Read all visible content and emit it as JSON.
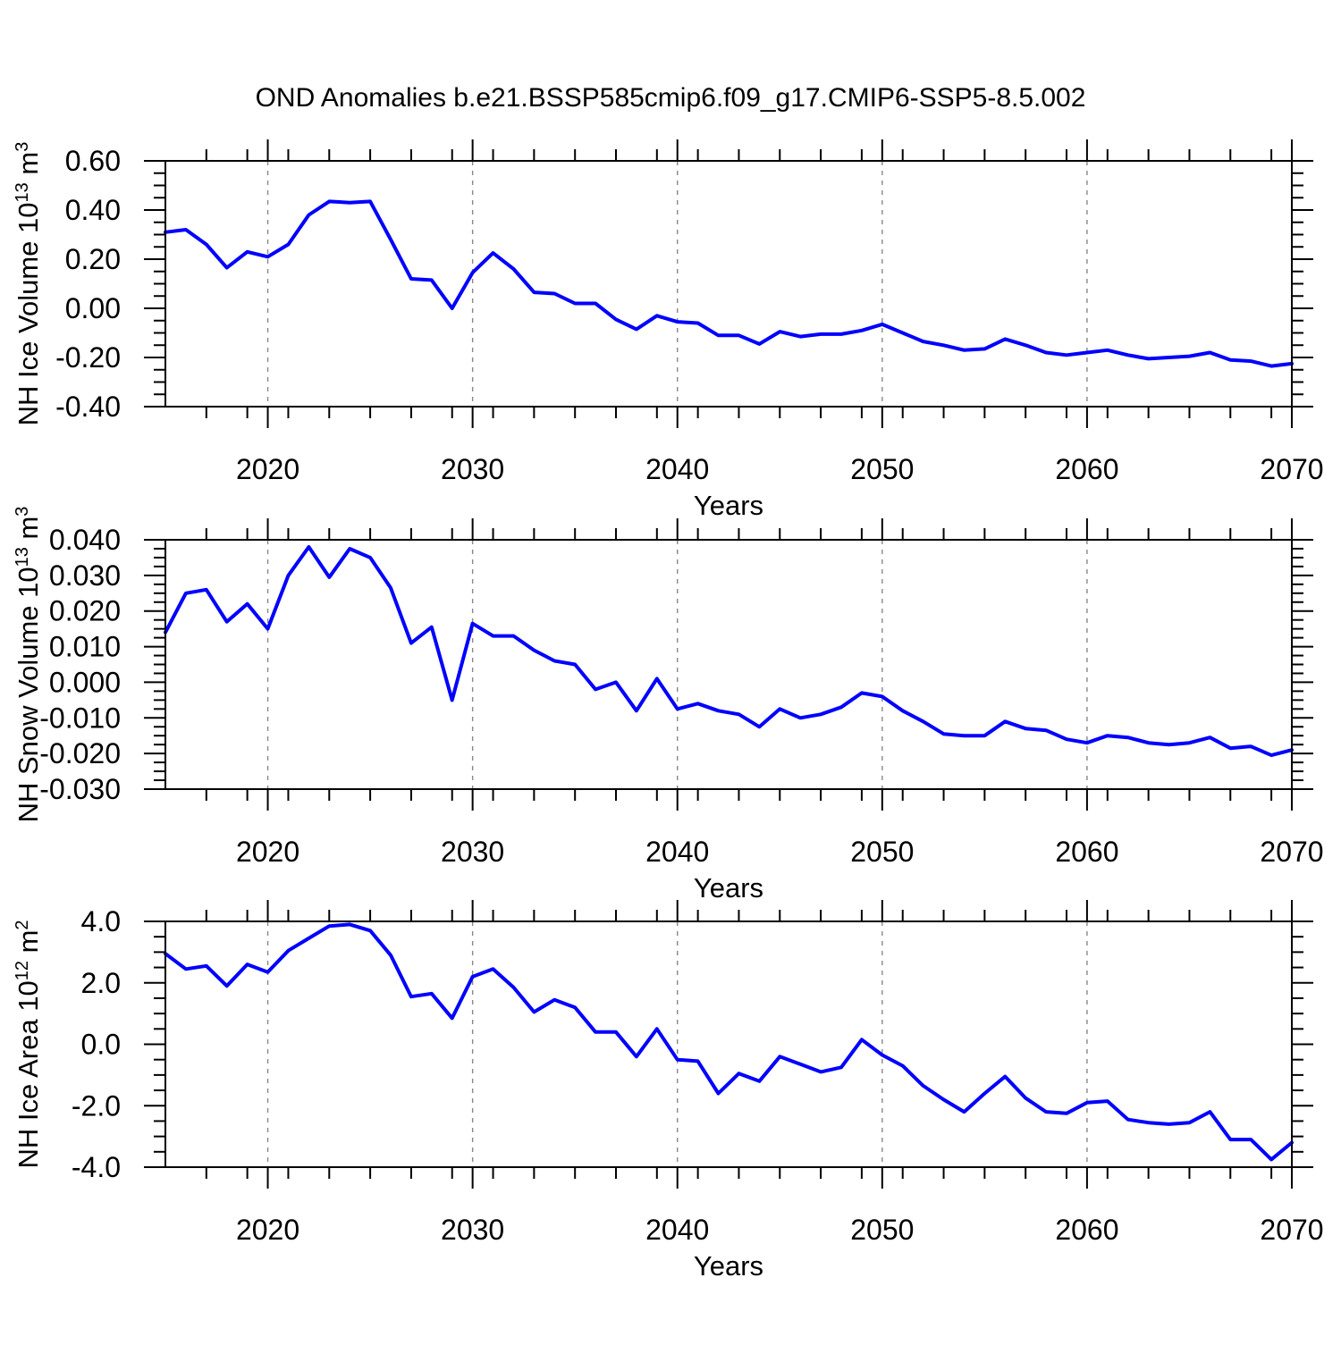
{
  "title": "OND Anomalies b.e21.BSSP585cmip6.f09_g17.CMIP6-SSP5-8.5.002",
  "colors": {
    "line": "#0000ff",
    "grid": "#888888",
    "frame": "#000000",
    "background": "#ffffff"
  },
  "chart_data": [
    {
      "type": "line",
      "name": "ice-volume",
      "ylabel": "NH Ice Volume 10^{13} m^{3}",
      "xlabel": "Years",
      "x": {
        "start": 2015,
        "end": 2070,
        "step": 1
      },
      "ylim": [
        -0.4,
        0.6
      ],
      "ymajor_step": 0.2,
      "yminor_step": 0.05,
      "yticks": [
        {
          "v": 0.6,
          "label": "0.60"
        },
        {
          "v": 0.4,
          "label": "0.40"
        },
        {
          "v": 0.2,
          "label": "0.20"
        },
        {
          "v": 0.0,
          "label": "0.00"
        },
        {
          "v": -0.2,
          "label": "-0.20"
        },
        {
          "v": -0.4,
          "label": "-0.40"
        }
      ],
      "xticks": [
        {
          "v": 2020,
          "label": "2020"
        },
        {
          "v": 2030,
          "label": "2030"
        },
        {
          "v": 2040,
          "label": "2040"
        },
        {
          "v": 2050,
          "label": "2050"
        },
        {
          "v": 2060,
          "label": "2060"
        },
        {
          "v": 2070,
          "label": "2070"
        }
      ],
      "xminor_step": 2,
      "gridlines": [
        2020,
        2030,
        2040,
        2050,
        2060
      ],
      "grid_style": "dashed-vertical",
      "legend": "none",
      "values": [
        0.31,
        0.32,
        0.26,
        0.165,
        0.23,
        0.21,
        0.26,
        0.38,
        0.435,
        0.43,
        0.435,
        0.28,
        0.12,
        0.115,
        0.0,
        0.145,
        0.225,
        0.16,
        0.065,
        0.06,
        0.02,
        0.02,
        -0.045,
        -0.085,
        -0.03,
        -0.055,
        -0.06,
        -0.11,
        -0.11,
        -0.145,
        -0.095,
        -0.115,
        -0.105,
        -0.105,
        -0.09,
        -0.065,
        -0.1,
        -0.135,
        -0.15,
        -0.17,
        -0.165,
        -0.125,
        -0.15,
        -0.18,
        -0.19,
        -0.18,
        -0.17,
        -0.19,
        -0.205,
        -0.2,
        -0.195,
        -0.18,
        -0.21,
        -0.215,
        -0.235,
        -0.225
      ]
    },
    {
      "type": "line",
      "name": "snow-volume",
      "ylabel": "NH Snow Volume 10^{13} m^{3}",
      "xlabel": "Years",
      "x": {
        "start": 2015,
        "end": 2070,
        "step": 1
      },
      "ylim": [
        -0.03,
        0.04
      ],
      "ymajor_step": 0.01,
      "yminor_step": 0.0025,
      "yticks": [
        {
          "v": 0.04,
          "label": "0.040"
        },
        {
          "v": 0.03,
          "label": "0.030"
        },
        {
          "v": 0.02,
          "label": "0.020"
        },
        {
          "v": 0.01,
          "label": "0.010"
        },
        {
          "v": 0.0,
          "label": "0.000"
        },
        {
          "v": -0.01,
          "label": "-0.010"
        },
        {
          "v": -0.02,
          "label": "-0.020"
        },
        {
          "v": -0.03,
          "label": "-0.030"
        }
      ],
      "xticks": [
        {
          "v": 2020,
          "label": "2020"
        },
        {
          "v": 2030,
          "label": "2030"
        },
        {
          "v": 2040,
          "label": "2040"
        },
        {
          "v": 2050,
          "label": "2050"
        },
        {
          "v": 2060,
          "label": "2060"
        },
        {
          "v": 2070,
          "label": "2070"
        }
      ],
      "xminor_step": 2,
      "gridlines": [
        2020,
        2030,
        2040,
        2050,
        2060
      ],
      "grid_style": "dashed-vertical",
      "legend": "none",
      "values": [
        0.014,
        0.025,
        0.026,
        0.017,
        0.022,
        0.015,
        0.03,
        0.038,
        0.0295,
        0.0375,
        0.035,
        0.0265,
        0.011,
        0.0155,
        -0.005,
        0.0165,
        0.013,
        0.013,
        0.009,
        0.006,
        0.005,
        -0.002,
        0.0,
        -0.008,
        0.001,
        -0.0075,
        -0.006,
        -0.008,
        -0.009,
        -0.0125,
        -0.0075,
        -0.01,
        -0.009,
        -0.007,
        -0.003,
        -0.004,
        -0.008,
        -0.011,
        -0.0145,
        -0.015,
        -0.015,
        -0.011,
        -0.013,
        -0.0135,
        -0.016,
        -0.017,
        -0.015,
        -0.0155,
        -0.017,
        -0.0175,
        -0.017,
        -0.0155,
        -0.0185,
        -0.018,
        -0.0205,
        -0.019
      ]
    },
    {
      "type": "line",
      "name": "ice-area",
      "ylabel": "NH Ice Area 10^{12} m^{2}",
      "xlabel": "Years",
      "x": {
        "start": 2015,
        "end": 2070,
        "step": 1
      },
      "ylim": [
        -4.0,
        4.0
      ],
      "ymajor_step": 2.0,
      "yminor_step": 0.5,
      "yticks": [
        {
          "v": 4.0,
          "label": "4.0"
        },
        {
          "v": 2.0,
          "label": "2.0"
        },
        {
          "v": 0.0,
          "label": "0.0"
        },
        {
          "v": -2.0,
          "label": "-2.0"
        },
        {
          "v": -4.0,
          "label": "-4.0"
        }
      ],
      "xticks": [
        {
          "v": 2020,
          "label": "2020"
        },
        {
          "v": 2030,
          "label": "2030"
        },
        {
          "v": 2040,
          "label": "2040"
        },
        {
          "v": 2050,
          "label": "2050"
        },
        {
          "v": 2060,
          "label": "2060"
        },
        {
          "v": 2070,
          "label": "2070"
        }
      ],
      "xminor_step": 2,
      "gridlines": [
        2020,
        2030,
        2040,
        2050,
        2060
      ],
      "grid_style": "dashed-vertical",
      "legend": "none",
      "values": [
        2.95,
        2.45,
        2.55,
        1.9,
        2.6,
        2.35,
        3.05,
        3.45,
        3.85,
        3.9,
        3.7,
        2.9,
        1.55,
        1.65,
        0.85,
        2.2,
        2.45,
        1.85,
        1.05,
        1.45,
        1.2,
        0.4,
        0.4,
        -0.4,
        0.5,
        -0.5,
        -0.55,
        -1.6,
        -0.95,
        -1.2,
        -0.4,
        -0.65,
        -0.9,
        -0.75,
        0.15,
        -0.35,
        -0.7,
        -1.35,
        -1.8,
        -2.2,
        -1.6,
        -1.05,
        -1.75,
        -2.2,
        -2.25,
        -1.9,
        -1.85,
        -2.45,
        -2.55,
        -2.6,
        -2.55,
        -2.2,
        -3.1,
        -3.1,
        -3.75,
        -3.2
      ]
    }
  ]
}
